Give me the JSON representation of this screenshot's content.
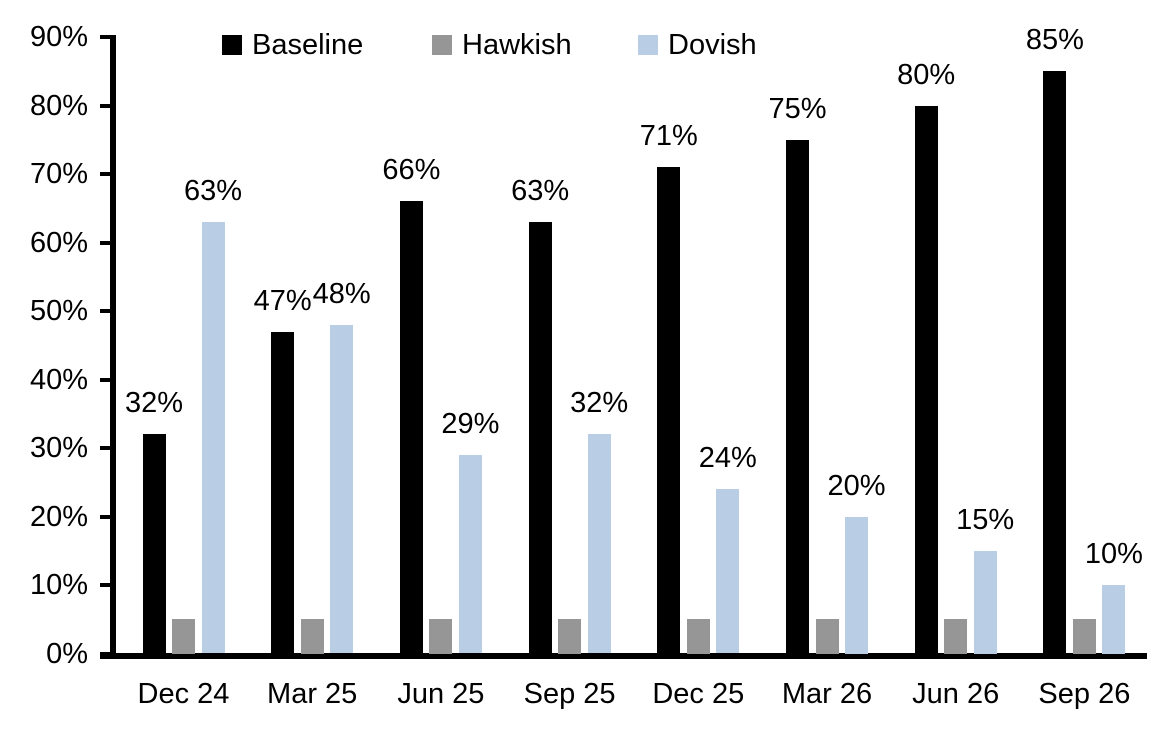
{
  "chart_data": {
    "type": "bar",
    "title": "",
    "xlabel": "",
    "ylabel": "",
    "categories": [
      "Dec 24",
      "Mar 25",
      "Jun 25",
      "Sep 25",
      "Dec 25",
      "Mar 26",
      "Jun 26",
      "Sep 26"
    ],
    "series": [
      {
        "name": "Baseline",
        "color": "#000000",
        "values": [
          32,
          47,
          66,
          63,
          71,
          75,
          80,
          85
        ],
        "labels": [
          "32%",
          "47%",
          "66%",
          "63%",
          "71%",
          "75%",
          "80%",
          "85%"
        ]
      },
      {
        "name": "Hawkish",
        "color": "#969696",
        "values": [
          5,
          5,
          5,
          5,
          5,
          5,
          5,
          5
        ],
        "labels": []
      },
      {
        "name": "Dovish",
        "color": "#B9CDE5",
        "values": [
          63,
          48,
          29,
          32,
          24,
          20,
          15,
          10
        ],
        "labels": [
          "63%",
          "48%",
          "29%",
          "32%",
          "24%",
          "20%",
          "15%",
          "10%"
        ]
      }
    ],
    "ylim": [
      0,
      90
    ],
    "ytick_step": 10,
    "yticks": [
      "0%",
      "10%",
      "20%",
      "30%",
      "40%",
      "50%",
      "60%",
      "70%",
      "80%",
      "90%"
    ],
    "legend_position": "top",
    "grid": false,
    "axis_color": "#000000",
    "label_color": "#000000"
  }
}
